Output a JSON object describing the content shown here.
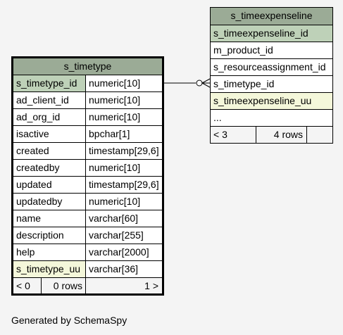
{
  "tables": {
    "timetype": {
      "title": "s_timetype",
      "columns": [
        {
          "name": "s_timetype_id",
          "type": "numeric[10]"
        },
        {
          "name": "ad_client_id",
          "type": "numeric[10]"
        },
        {
          "name": "ad_org_id",
          "type": "numeric[10]"
        },
        {
          "name": "isactive",
          "type": "bpchar[1]"
        },
        {
          "name": "created",
          "type": "timestamp[29,6]"
        },
        {
          "name": "createdby",
          "type": "numeric[10]"
        },
        {
          "name": "updated",
          "type": "timestamp[29,6]"
        },
        {
          "name": "updatedby",
          "type": "numeric[10]"
        },
        {
          "name": "name",
          "type": "varchar[60]"
        },
        {
          "name": "description",
          "type": "varchar[255]"
        },
        {
          "name": "help",
          "type": "varchar[2000]"
        },
        {
          "name": "s_timetype_uu",
          "type": "varchar[36]"
        }
      ],
      "footer": {
        "parents": "< 0",
        "rows": "0 rows",
        "children": "1 >"
      }
    },
    "timeexpenseline": {
      "title": "s_timeexpenseline",
      "columns": [
        "s_timeexpenseline_id",
        "m_product_id",
        "s_resourceassignment_id",
        "s_timetype_id",
        "s_timeexpenseline_uu",
        "..."
      ],
      "footer": {
        "parents": "< 3",
        "rows": "4 rows"
      }
    }
  },
  "generated_by": "Generated by SchemaSpy",
  "colors": {
    "header": "#9bab96",
    "primary_key": "#bed1b8",
    "unique": "#f4f7da",
    "background": "#f4f4f4"
  }
}
